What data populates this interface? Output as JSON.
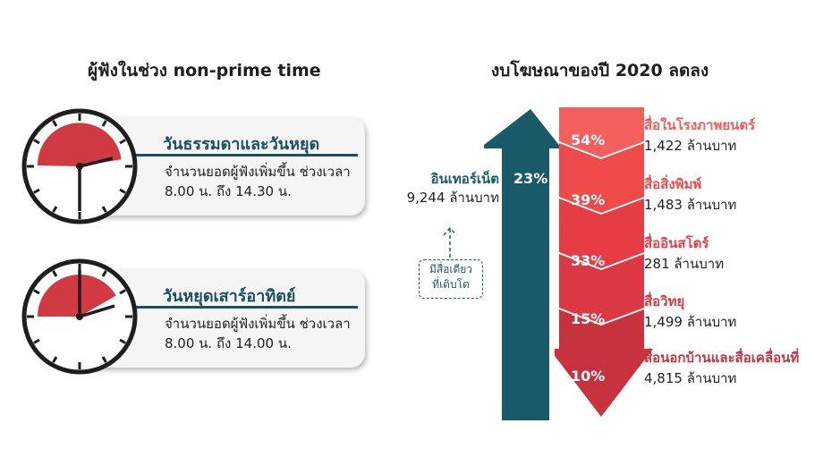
{
  "left": {
    "heading": "ผู้ฟังในช่วง non-prime time",
    "cards": [
      {
        "title": "วันธรรมดาและวันหยุด",
        "line1": "จำนวนยอดผู้ฟังเพิ่มขึ้น ช่วงเวลา",
        "line2": "8.00 น. ถึง 14.30 น."
      },
      {
        "title": "วันหยุดเสาร์อาทิตย์",
        "line1": "จำนวนยอดผู้ฟังเพิ่มขึ้น ช่วงเวลา",
        "line2": "8.00 น. ถึง 14.00 น."
      }
    ]
  },
  "right": {
    "heading": "งบโฆษณาของปี 2020 ลดลง",
    "internet": {
      "title": "อินเทอร์เน็ต",
      "value": "9,244 ล้านบาท",
      "percent": "23%",
      "note_line1": "มีสื่อเดียว",
      "note_line2": "ที่เติบโต"
    },
    "categories": [
      {
        "percent": "54%",
        "title": "สื่อในโรงภาพยนตร์",
        "value": "1,422 ล้านบาท"
      },
      {
        "percent": "39%",
        "title": "สื่อสิ่งพิมพ์",
        "value": "1,483 ล้านบาท"
      },
      {
        "percent": "33%",
        "title": "สื่ออินสโตร์",
        "value": "281 ล้านบาท"
      },
      {
        "percent": "15%",
        "title": "สื่อวิทยุ",
        "value": "1,499 ล้านบาท"
      },
      {
        "percent": "10%",
        "title": "สื่อนอกบ้านและสื่อเคลื่อนที่",
        "value": "4,815 ล้านบาท"
      }
    ]
  },
  "colors": {
    "teal": "#195a69",
    "red1": "#f25f5c",
    "red2": "#ef4a4a",
    "red3": "#e63d45",
    "red4": "#dc3843",
    "red5": "#c8323f",
    "clock_red": "#d23a43"
  }
}
